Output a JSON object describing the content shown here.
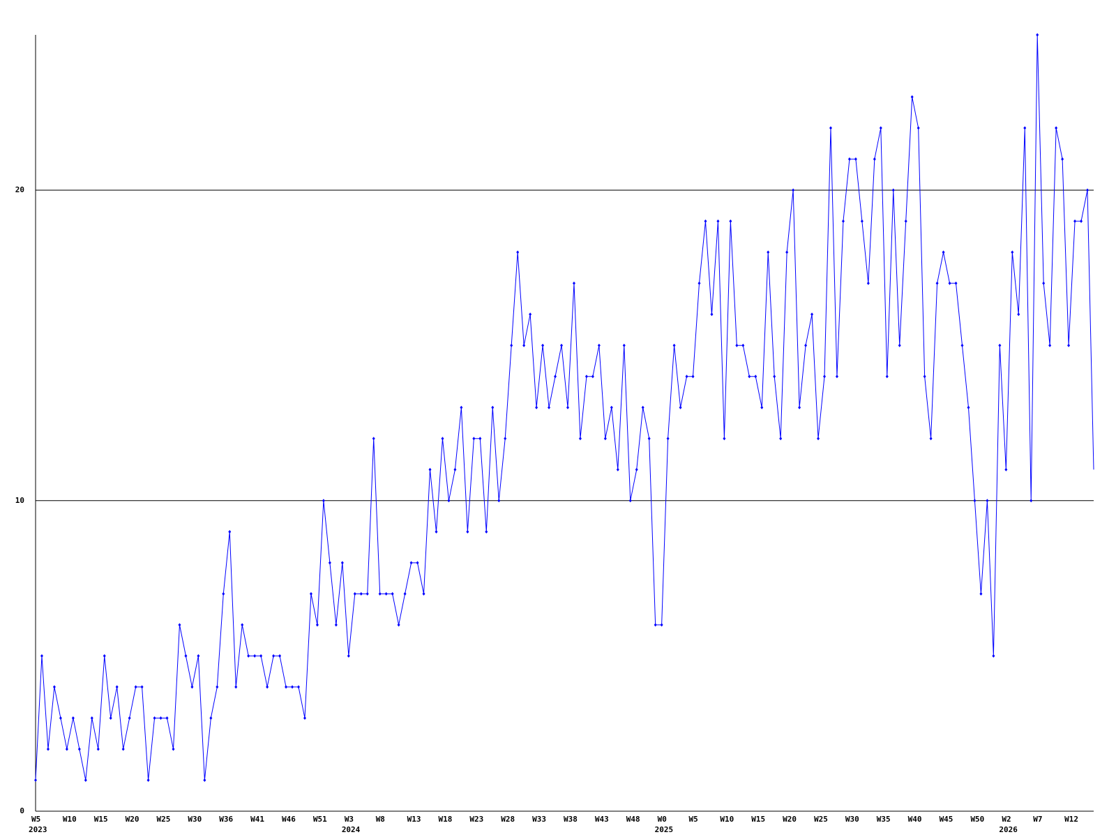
{
  "chart_data": {
    "type": "line",
    "categories": [
      [
        "W5",
        "2023"
      ],
      null,
      null,
      null,
      null,
      "W10",
      null,
      null,
      null,
      null,
      "W15",
      null,
      null,
      null,
      null,
      "W20",
      null,
      null,
      null,
      null,
      "W25",
      null,
      null,
      null,
      null,
      "W30",
      null,
      null,
      null,
      null,
      "W36",
      null,
      null,
      null,
      null,
      "W41",
      null,
      null,
      null,
      null,
      "W46",
      null,
      null,
      null,
      null,
      "W51",
      null,
      null,
      null,
      null,
      [
        "W3",
        "2024"
      ],
      null,
      null,
      null,
      null,
      "W8",
      null,
      null,
      null,
      null,
      "W13",
      null,
      null,
      null,
      null,
      "W18",
      null,
      null,
      null,
      null,
      "W23",
      null,
      null,
      null,
      null,
      "W28",
      null,
      null,
      null,
      null,
      "W33",
      null,
      null,
      null,
      null,
      "W38",
      null,
      null,
      null,
      null,
      "W43",
      null,
      null,
      null,
      null,
      "W48",
      null,
      null,
      null,
      null,
      [
        "W0",
        "2025"
      ],
      null,
      null,
      null,
      null,
      "W5",
      null,
      null,
      null,
      null,
      "W10",
      null,
      null,
      null,
      null,
      "W15",
      null,
      null,
      null,
      null,
      "W20",
      null,
      null,
      null,
      null,
      "W25",
      null,
      null,
      null,
      null,
      "W30",
      null,
      null,
      null,
      null,
      "W35",
      null,
      null,
      null,
      null,
      "W40",
      null,
      null,
      null,
      null,
      "W45",
      null,
      null,
      null,
      null,
      "W50",
      null,
      null,
      null,
      null,
      [
        "W2",
        "2026"
      ],
      null,
      null,
      null,
      null,
      "W7",
      null,
      null,
      null,
      null,
      "W12",
      null,
      null,
      null,
      null
    ],
    "series": [
      {
        "name": null,
        "color": "#0000ff",
        "values": [
          1,
          5,
          2,
          4,
          3,
          2,
          3,
          2,
          1,
          3,
          2,
          5,
          3,
          4,
          2,
          3,
          4,
          4,
          1,
          3,
          3,
          3,
          2,
          6,
          5,
          4,
          5,
          1,
          3,
          4,
          7,
          9,
          4,
          6,
          5,
          5,
          5,
          4,
          5,
          5,
          4,
          4,
          4,
          3,
          7,
          6,
          10,
          8,
          6,
          8,
          5,
          7,
          7,
          7,
          12,
          7,
          7,
          7,
          6,
          7,
          8,
          8,
          7,
          11,
          9,
          12,
          10,
          11,
          13,
          9,
          12,
          12,
          9,
          13,
          10,
          12,
          15,
          18,
          15,
          16,
          13,
          15,
          13,
          14,
          15,
          13,
          17,
          12,
          14,
          14,
          15,
          12,
          13,
          11,
          15,
          10,
          11,
          13,
          12,
          6,
          6,
          12,
          15,
          13,
          14,
          14,
          17,
          19,
          16,
          19,
          12,
          19,
          15,
          15,
          14,
          14,
          13,
          18,
          14,
          12,
          18,
          20,
          13,
          15,
          16,
          12,
          14,
          22,
          14,
          19,
          21,
          21,
          19,
          17,
          21,
          22,
          14,
          20,
          15,
          19,
          23,
          22,
          14,
          12,
          17,
          18,
          17,
          17,
          15,
          13,
          10,
          7,
          10,
          5,
          15,
          11,
          18,
          16,
          22,
          10,
          25,
          17,
          15,
          22,
          21,
          15,
          19,
          19,
          20,
          11
        ]
      }
    ],
    "ylim": [
      0,
      25
    ],
    "yticks": [
      0,
      10,
      20
    ],
    "grid": true
  }
}
